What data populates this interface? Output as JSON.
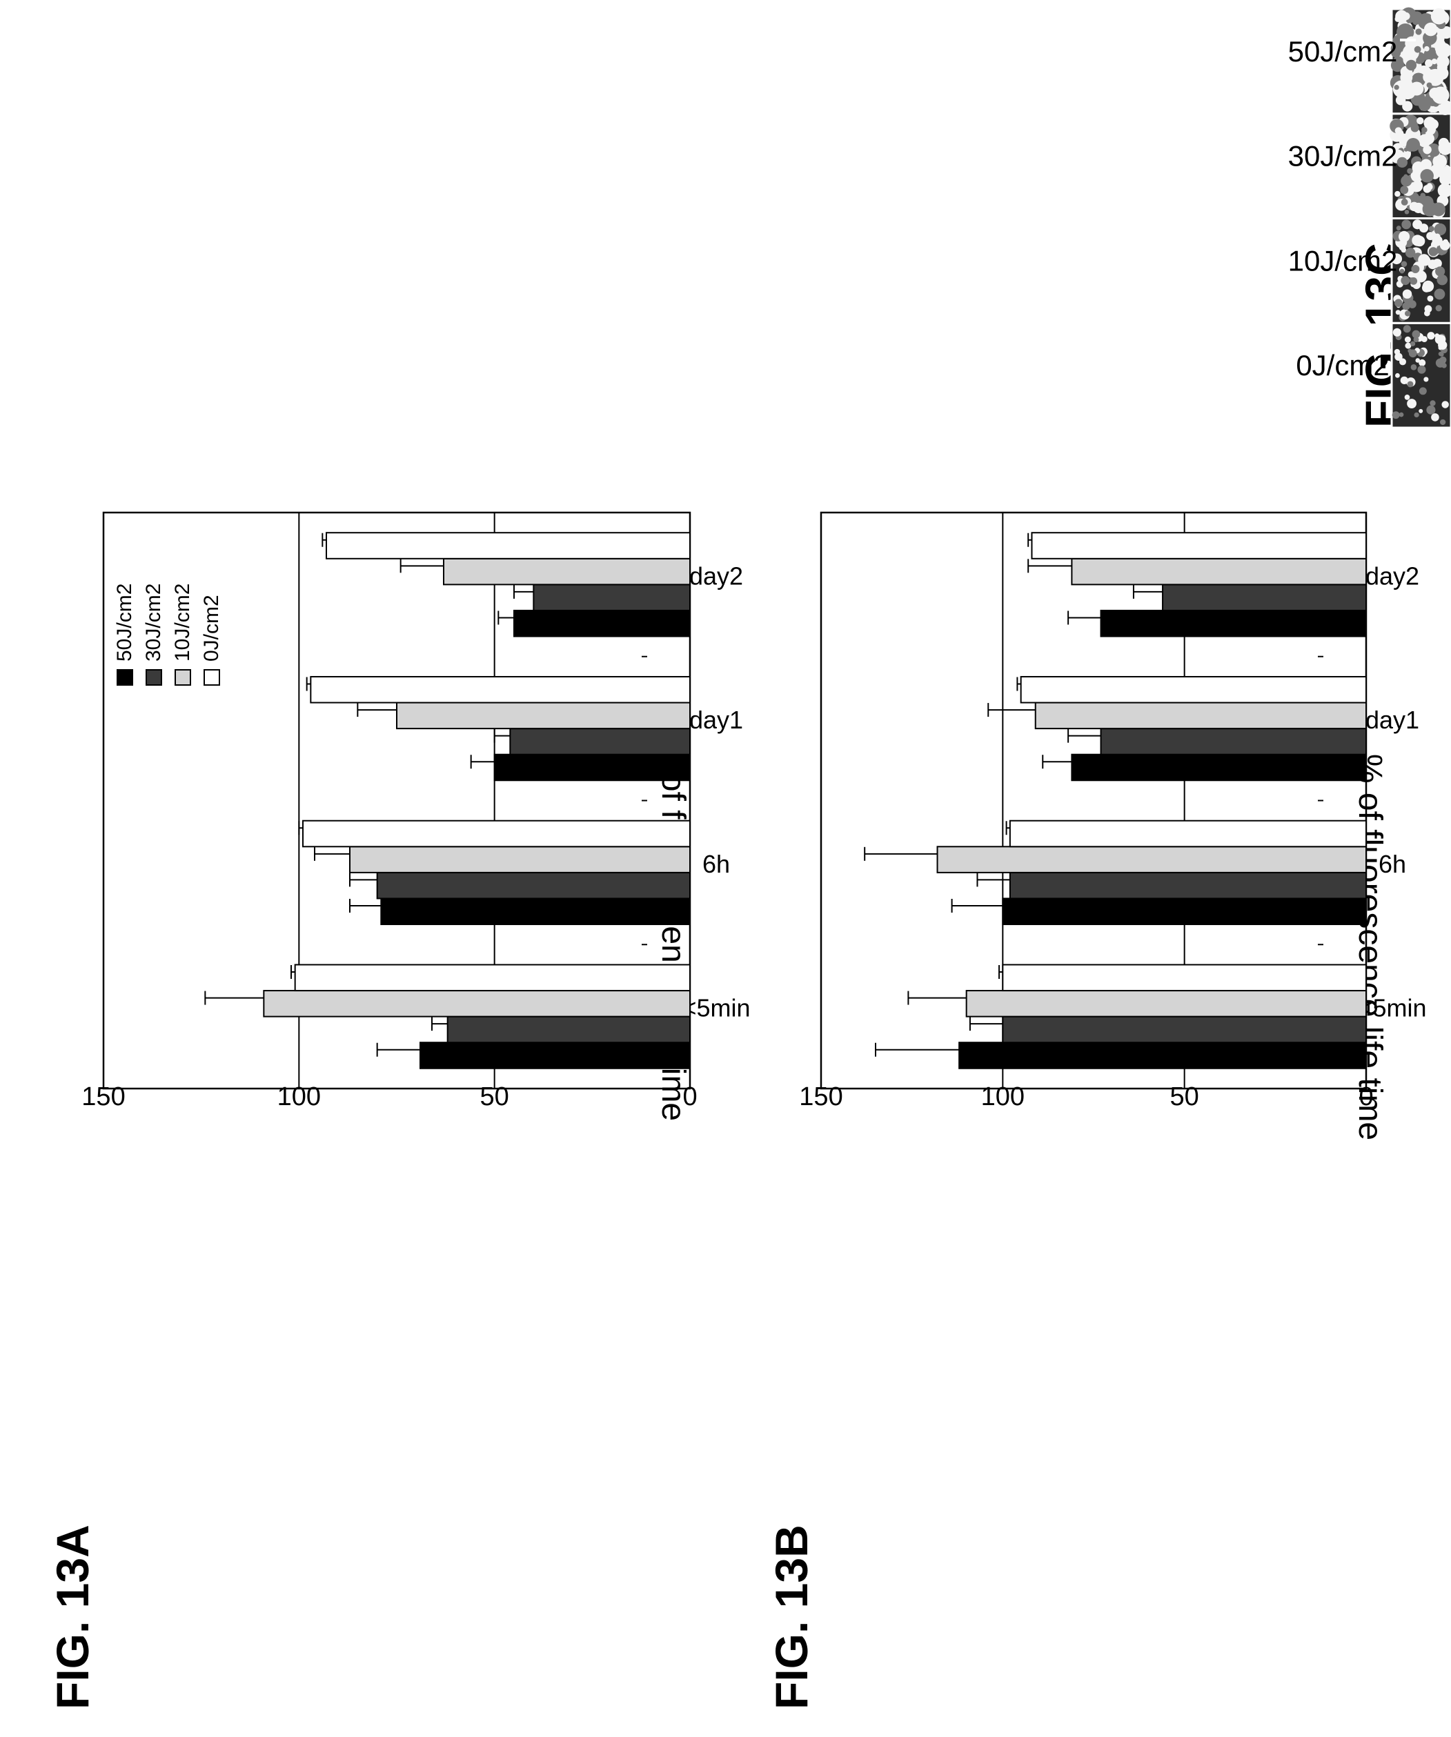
{
  "colors": {
    "ink": "#000000",
    "series": [
      "#000000",
      "#3a3a3a",
      "#d4d4d4",
      "#ffffff"
    ]
  },
  "panels": {
    "a": {
      "label": "FIG. 13A"
    },
    "b": {
      "label": "FIG. 13B"
    },
    "c": {
      "label": "FIG. 13C",
      "image_labels": [
        "0J/cm2",
        "10J/cm2",
        "30J/cm2",
        "50J/cm2"
      ]
    }
  },
  "chart_data": [
    {
      "id": "a",
      "type": "bar",
      "ylabel": "% of fluorescence life time",
      "ylim": [
        0,
        150
      ],
      "yticks": [
        0,
        50,
        100,
        150
      ],
      "grid": true,
      "legend": "top-right",
      "categories": [
        "<5min",
        "6h",
        "day1",
        "day2"
      ],
      "series": [
        {
          "name": "50J/cm2",
          "values": [
            69,
            79,
            50,
            45
          ],
          "errors": [
            11,
            8,
            6,
            4
          ]
        },
        {
          "name": "30J/cm2",
          "values": [
            62,
            80,
            46,
            40
          ],
          "errors": [
            4,
            7,
            4,
            5
          ]
        },
        {
          "name": "10J/cm2",
          "values": [
            109,
            87,
            75,
            63
          ],
          "errors": [
            15,
            9,
            10,
            11
          ]
        },
        {
          "name": "0J/cm2",
          "values": [
            101,
            99,
            97,
            93
          ],
          "errors": [
            1,
            1,
            1,
            1
          ]
        }
      ]
    },
    {
      "id": "b",
      "type": "bar",
      "ylabel": "% of fluorescence life time",
      "ylim": [
        0,
        150
      ],
      "yticks": [
        0,
        50,
        100,
        150
      ],
      "grid": true,
      "categories": [
        "<5min",
        "6h",
        "day1",
        "day2"
      ],
      "series": [
        {
          "values": [
            112,
            100,
            81,
            73
          ],
          "errors": [
            23,
            14,
            8,
            9
          ]
        },
        {
          "values": [
            100,
            98,
            73,
            56
          ],
          "errors": [
            9,
            9,
            9,
            8
          ]
        },
        {
          "values": [
            110,
            118,
            91,
            81
          ],
          "errors": [
            16,
            20,
            13,
            12
          ]
        },
        {
          "values": [
            100,
            98,
            95,
            92
          ],
          "errors": [
            1,
            1,
            1,
            1
          ]
        }
      ]
    }
  ]
}
